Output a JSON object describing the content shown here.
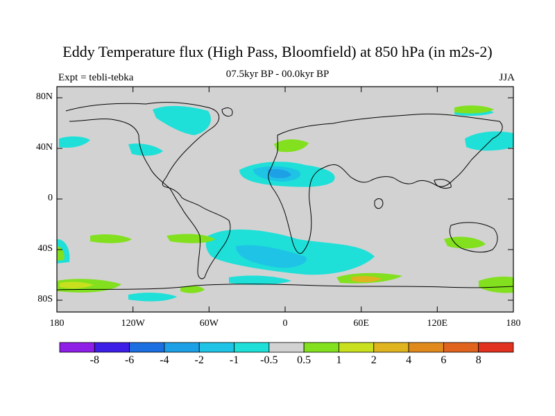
{
  "title": "Eddy Temperature flux (High Pass, Bloomfield) at 850 hPa (in m2s-2)",
  "subtitle_left": "Expt = tebli-tebka",
  "subtitle_center": "07.5kyr BP - 00.0kyr BP",
  "subtitle_right": "JJA",
  "y_tick_labels": [
    "80N",
    "40N",
    "0",
    "40S",
    "80S"
  ],
  "x_tick_labels": [
    "180",
    "120W",
    "60W",
    "0",
    "60E",
    "120E",
    "180"
  ],
  "colorbar": {
    "labels": [
      "-8",
      "-6",
      "-4",
      "-2",
      "-1",
      "-0.5",
      "0.5",
      "1",
      "2",
      "4",
      "6",
      "8"
    ],
    "colors": [
      "#8f1ee6",
      "#3c1ee6",
      "#1c6fe0",
      "#1ea0e6",
      "#1ec3e6",
      "#1ee0d8",
      "#d2d2d2",
      "#82e01e",
      "#c8e01e",
      "#e0b41e",
      "#e08a1e",
      "#e0641e",
      "#e0321e"
    ]
  },
  "colors": {
    "neutral": "#d2d2d2",
    "coast": "#000000"
  }
}
